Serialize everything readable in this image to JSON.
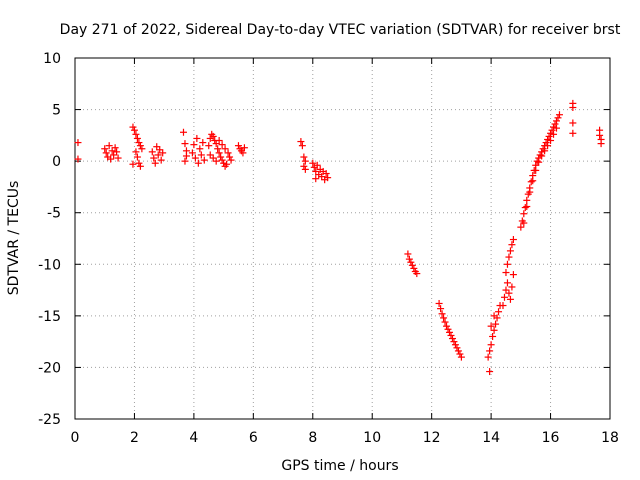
{
  "chart_data": {
    "type": "scatter",
    "title": "Day 271 of 2022, Sidereal Day-to-day VTEC variation (SDTVAR) for receiver brst",
    "xlabel": "GPS time / hours",
    "ylabel": "SDTVAR / TECUs",
    "xlim": [
      0,
      18
    ],
    "ylim": [
      -25,
      10
    ],
    "xticks": [
      0,
      2,
      4,
      6,
      8,
      10,
      12,
      14,
      16,
      18
    ],
    "yticks": [
      -25,
      -20,
      -15,
      -10,
      -5,
      0,
      5,
      10
    ],
    "xtick_labels": [
      "0",
      "2",
      "4",
      "6",
      "8",
      "10",
      "12",
      "14",
      "16",
      "18"
    ],
    "ytick_labels": [
      "-25",
      "-20",
      "-15",
      "-10",
      "-5",
      "0",
      "5",
      "10"
    ],
    "grid": true,
    "marker": "+",
    "color": "#ff0000",
    "series": [
      {
        "name": "brst",
        "points": [
          [
            0.1,
            1.8
          ],
          [
            0.1,
            0.2
          ],
          [
            1.0,
            1.2
          ],
          [
            1.05,
            0.8
          ],
          [
            1.1,
            0.4
          ],
          [
            1.15,
            1.5
          ],
          [
            1.2,
            0.2
          ],
          [
            1.25,
            1.0
          ],
          [
            1.3,
            0.6
          ],
          [
            1.35,
            1.3
          ],
          [
            1.4,
            0.9
          ],
          [
            1.45,
            0.3
          ],
          [
            1.95,
            3.3
          ],
          [
            2.0,
            3.0
          ],
          [
            2.05,
            2.6
          ],
          [
            2.1,
            2.2
          ],
          [
            2.15,
            1.8
          ],
          [
            2.2,
            1.5
          ],
          [
            2.25,
            1.2
          ],
          [
            2.05,
            0.9
          ],
          [
            2.1,
            0.4
          ],
          [
            2.15,
            -0.2
          ],
          [
            2.2,
            -0.5
          ],
          [
            1.95,
            -0.3
          ],
          [
            2.6,
            0.9
          ],
          [
            2.65,
            0.3
          ],
          [
            2.7,
            -0.2
          ],
          [
            2.75,
            1.4
          ],
          [
            2.8,
            0.6
          ],
          [
            2.85,
            1.1
          ],
          [
            2.9,
            0.1
          ],
          [
            2.95,
            0.8
          ],
          [
            3.65,
            2.8
          ],
          [
            3.7,
            1.7
          ],
          [
            3.75,
            1.0
          ],
          [
            3.7,
            0.0
          ],
          [
            3.75,
            0.5
          ],
          [
            3.95,
            0.8
          ],
          [
            4.0,
            1.6
          ],
          [
            4.05,
            0.3
          ],
          [
            4.1,
            2.2
          ],
          [
            4.15,
            -0.2
          ],
          [
            4.2,
            1.2
          ],
          [
            4.25,
            0.6
          ],
          [
            4.3,
            1.8
          ],
          [
            4.35,
            0.1
          ],
          [
            4.5,
            1.5
          ],
          [
            4.55,
            2.2
          ],
          [
            4.6,
            2.6
          ],
          [
            4.65,
            2.4
          ],
          [
            4.7,
            2.0
          ],
          [
            4.75,
            1.7
          ],
          [
            4.8,
            1.2
          ],
          [
            4.85,
            0.8
          ],
          [
            4.9,
            0.4
          ],
          [
            4.95,
            0.1
          ],
          [
            5.0,
            -0.2
          ],
          [
            5.05,
            -0.5
          ],
          [
            5.1,
            -0.3
          ],
          [
            4.55,
            0.6
          ],
          [
            4.65,
            0.3
          ],
          [
            4.75,
            0.0
          ],
          [
            4.85,
            2.0
          ],
          [
            4.95,
            1.6
          ],
          [
            5.05,
            1.2
          ],
          [
            5.15,
            0.8
          ],
          [
            5.2,
            0.4
          ],
          [
            5.25,
            0.1
          ],
          [
            5.5,
            1.5
          ],
          [
            5.55,
            1.2
          ],
          [
            5.6,
            1.0
          ],
          [
            5.65,
            0.8
          ],
          [
            5.7,
            1.3
          ],
          [
            7.6,
            1.9
          ],
          [
            7.65,
            1.5
          ],
          [
            7.7,
            0.4
          ],
          [
            7.75,
            0.0
          ],
          [
            7.7,
            -0.5
          ],
          [
            7.75,
            -0.8
          ],
          [
            8.0,
            -0.2
          ],
          [
            8.05,
            -0.6
          ],
          [
            8.1,
            -1.0
          ],
          [
            8.15,
            -0.4
          ],
          [
            8.2,
            -1.3
          ],
          [
            8.25,
            -0.8
          ],
          [
            8.3,
            -1.5
          ],
          [
            8.35,
            -1.0
          ],
          [
            8.4,
            -1.8
          ],
          [
            8.45,
            -1.2
          ],
          [
            8.5,
            -1.6
          ],
          [
            8.1,
            -1.7
          ],
          [
            11.2,
            -9.0
          ],
          [
            11.25,
            -9.5
          ],
          [
            11.3,
            -9.8
          ],
          [
            11.35,
            -10.1
          ],
          [
            11.4,
            -10.4
          ],
          [
            11.45,
            -10.7
          ],
          [
            11.5,
            -10.9
          ],
          [
            12.25,
            -13.8
          ],
          [
            12.3,
            -14.3
          ],
          [
            12.35,
            -14.8
          ],
          [
            12.4,
            -15.2
          ],
          [
            12.45,
            -15.6
          ],
          [
            12.5,
            -16.0
          ],
          [
            12.55,
            -16.3
          ],
          [
            12.6,
            -16.6
          ],
          [
            12.65,
            -16.9
          ],
          [
            12.7,
            -17.2
          ],
          [
            12.75,
            -17.5
          ],
          [
            12.8,
            -17.8
          ],
          [
            12.85,
            -18.1
          ],
          [
            12.9,
            -18.4
          ],
          [
            12.95,
            -18.7
          ],
          [
            13.0,
            -19.0
          ],
          [
            13.95,
            -20.4
          ],
          [
            13.9,
            -19.0
          ],
          [
            13.95,
            -18.4
          ],
          [
            14.0,
            -17.8
          ],
          [
            14.05,
            -17.0
          ],
          [
            14.1,
            -16.4
          ],
          [
            14.15,
            -15.8
          ],
          [
            14.2,
            -15.2
          ],
          [
            14.25,
            -14.6
          ],
          [
            14.3,
            -14.0
          ],
          [
            14.0,
            -16.0
          ],
          [
            14.1,
            -15.0
          ],
          [
            14.4,
            -14.0
          ],
          [
            14.45,
            -13.2
          ],
          [
            14.5,
            -12.5
          ],
          [
            14.55,
            -11.8
          ],
          [
            14.5,
            -10.8
          ],
          [
            14.55,
            -10.0
          ],
          [
            14.6,
            -9.3
          ],
          [
            14.65,
            -8.7
          ],
          [
            14.7,
            -8.1
          ],
          [
            14.75,
            -7.6
          ],
          [
            14.6,
            -12.8
          ],
          [
            14.65,
            -13.4
          ],
          [
            14.7,
            -12.2
          ],
          [
            14.75,
            -11.0
          ],
          [
            15.0,
            -6.4
          ],
          [
            15.05,
            -5.8
          ],
          [
            15.1,
            -5.1
          ],
          [
            15.15,
            -4.5
          ],
          [
            15.2,
            -3.8
          ],
          [
            15.25,
            -3.2
          ],
          [
            15.3,
            -2.6
          ],
          [
            15.35,
            -2.0
          ],
          [
            15.4,
            -1.4
          ],
          [
            15.45,
            -0.9
          ],
          [
            15.5,
            -0.4
          ],
          [
            15.55,
            0.0
          ],
          [
            15.6,
            0.3
          ],
          [
            15.65,
            0.6
          ],
          [
            15.7,
            0.9
          ],
          [
            15.75,
            1.2
          ],
          [
            15.8,
            1.5
          ],
          [
            15.85,
            1.8
          ],
          [
            15.9,
            2.1
          ],
          [
            15.95,
            2.4
          ],
          [
            16.0,
            2.7
          ],
          [
            16.05,
            3.0
          ],
          [
            16.1,
            3.3
          ],
          [
            16.15,
            3.6
          ],
          [
            16.2,
            3.9
          ],
          [
            16.25,
            4.2
          ],
          [
            16.3,
            4.5
          ],
          [
            15.1,
            -6.0
          ],
          [
            15.2,
            -4.4
          ],
          [
            15.3,
            -3.0
          ],
          [
            15.4,
            -1.9
          ],
          [
            15.5,
            -0.9
          ],
          [
            15.6,
            -0.1
          ],
          [
            15.7,
            0.5
          ],
          [
            15.8,
            1.0
          ],
          [
            15.9,
            1.5
          ],
          [
            16.0,
            2.0
          ],
          [
            16.1,
            2.6
          ],
          [
            16.2,
            3.2
          ],
          [
            16.75,
            5.6
          ],
          [
            16.75,
            5.2
          ],
          [
            16.75,
            3.7
          ],
          [
            16.75,
            2.7
          ],
          [
            17.65,
            3.0
          ],
          [
            17.65,
            2.5
          ],
          [
            17.7,
            2.1
          ],
          [
            17.7,
            1.7
          ]
        ]
      }
    ]
  }
}
